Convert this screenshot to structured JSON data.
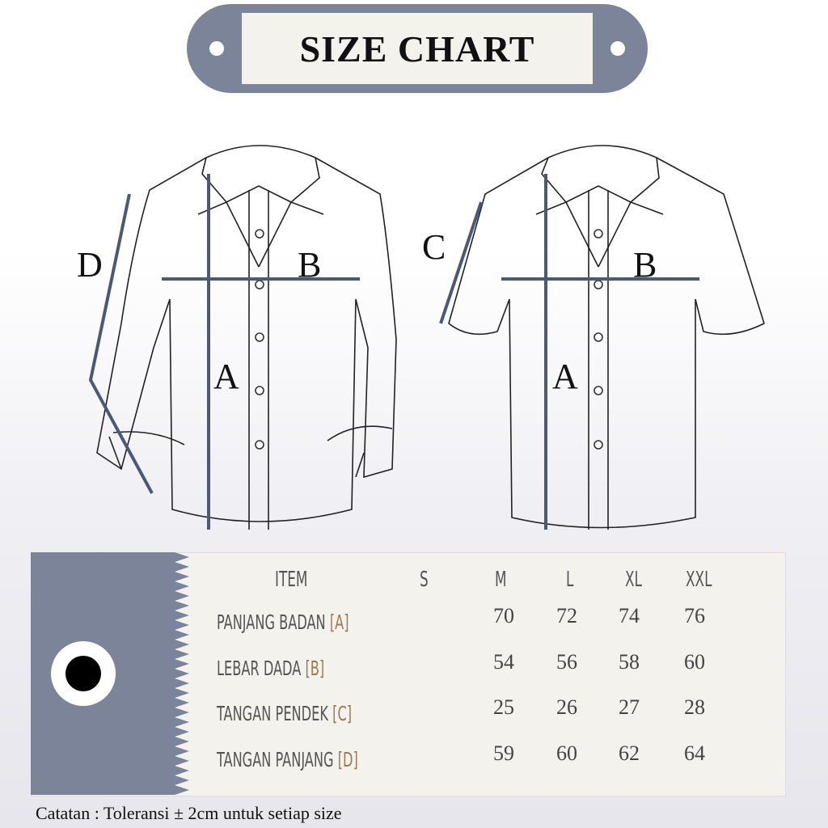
{
  "title": "SIZE CHART",
  "diagram_labels": {
    "a": "A",
    "b": "B",
    "c": "C",
    "d": "D"
  },
  "table": {
    "headers": [
      "ITEM",
      "S",
      "M",
      "L",
      "XL",
      "XXL"
    ],
    "rows": [
      {
        "item": "PANJANG BADAN",
        "code": "[A]",
        "values": [
          "",
          "70",
          "72",
          "74",
          "76"
        ]
      },
      {
        "item": "LEBAR DADA",
        "code": "[B]",
        "values": [
          "",
          "54",
          "56",
          "58",
          "60"
        ]
      },
      {
        "item": "TANGAN PENDEK",
        "code": "[C]",
        "values": [
          "",
          "25",
          "26",
          "27",
          "28"
        ]
      },
      {
        "item": "TANGAN PANJANG",
        "code": "[D]",
        "values": [
          "",
          "59",
          "60",
          "62",
          "64"
        ]
      }
    ]
  },
  "note": "Catatan : Toleransi  ± 2cm untuk setiap size",
  "colors": {
    "tag": "#7b8498",
    "panel": "#f3f2ec",
    "measure_line": "#4a5a75",
    "code": "#9a7a55"
  }
}
